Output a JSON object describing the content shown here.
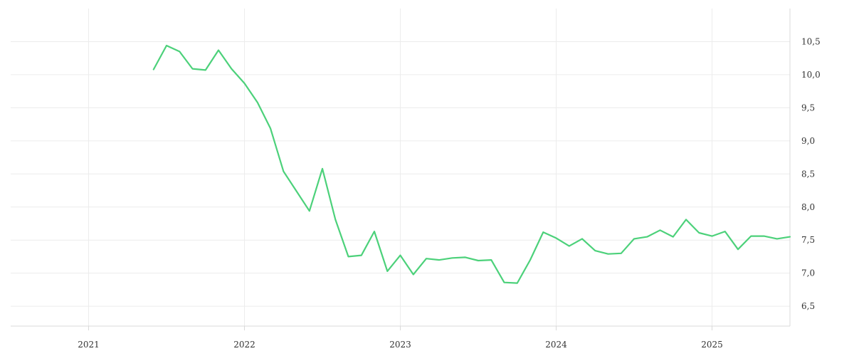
{
  "chart_data": {
    "type": "line",
    "title": "",
    "xlabel": "",
    "ylabel": "",
    "x_ticks": [
      "2021",
      "2022",
      "2023",
      "2024",
      "2025"
    ],
    "y_ticks": [
      "6,5",
      "7,0",
      "7,5",
      "8,0",
      "8,5",
      "9,0",
      "9,5",
      "10,0",
      "10,5"
    ],
    "y_tick_values": [
      6.5,
      7.0,
      7.5,
      8.0,
      8.5,
      9.0,
      9.5,
      10.0,
      10.5
    ],
    "xlim": [
      "2020-07",
      "2025-07"
    ],
    "ylim": [
      6.2,
      11.0
    ],
    "grid": true,
    "y_axis_position": "right",
    "series": [
      {
        "color": "#4cd17a",
        "x": [
          "2021-06",
          "2021-07",
          "2021-08",
          "2021-09",
          "2021-10",
          "2021-11",
          "2021-12",
          "2022-01",
          "2022-02",
          "2022-03",
          "2022-04",
          "2022-05",
          "2022-06",
          "2022-07",
          "2022-08",
          "2022-09",
          "2022-10",
          "2022-11",
          "2022-12",
          "2023-01",
          "2023-02",
          "2023-03",
          "2023-04",
          "2023-05",
          "2023-06",
          "2023-07",
          "2023-08",
          "2023-09",
          "2023-10",
          "2023-11",
          "2023-12",
          "2024-01",
          "2024-02",
          "2024-03",
          "2024-04",
          "2024-05",
          "2024-06",
          "2024-07",
          "2024-08",
          "2024-09",
          "2024-10",
          "2024-11",
          "2024-12",
          "2025-01",
          "2025-02",
          "2025-03",
          "2025-04",
          "2025-05",
          "2025-06",
          "2025-07"
        ],
        "values": [
          10.08,
          10.44,
          10.35,
          10.09,
          10.07,
          10.37,
          10.09,
          9.87,
          9.58,
          9.19,
          8.54,
          8.24,
          7.94,
          8.58,
          7.81,
          7.25,
          7.27,
          7.63,
          7.03,
          7.27,
          6.98,
          7.22,
          7.2,
          7.23,
          7.24,
          7.19,
          7.2,
          6.86,
          6.85,
          7.2,
          7.62,
          7.53,
          7.41,
          7.52,
          7.34,
          7.29,
          7.3,
          7.52,
          7.55,
          7.65,
          7.55,
          7.81,
          7.61,
          7.56,
          7.63,
          7.36,
          7.56,
          7.56,
          7.52,
          7.55
        ]
      }
    ]
  }
}
